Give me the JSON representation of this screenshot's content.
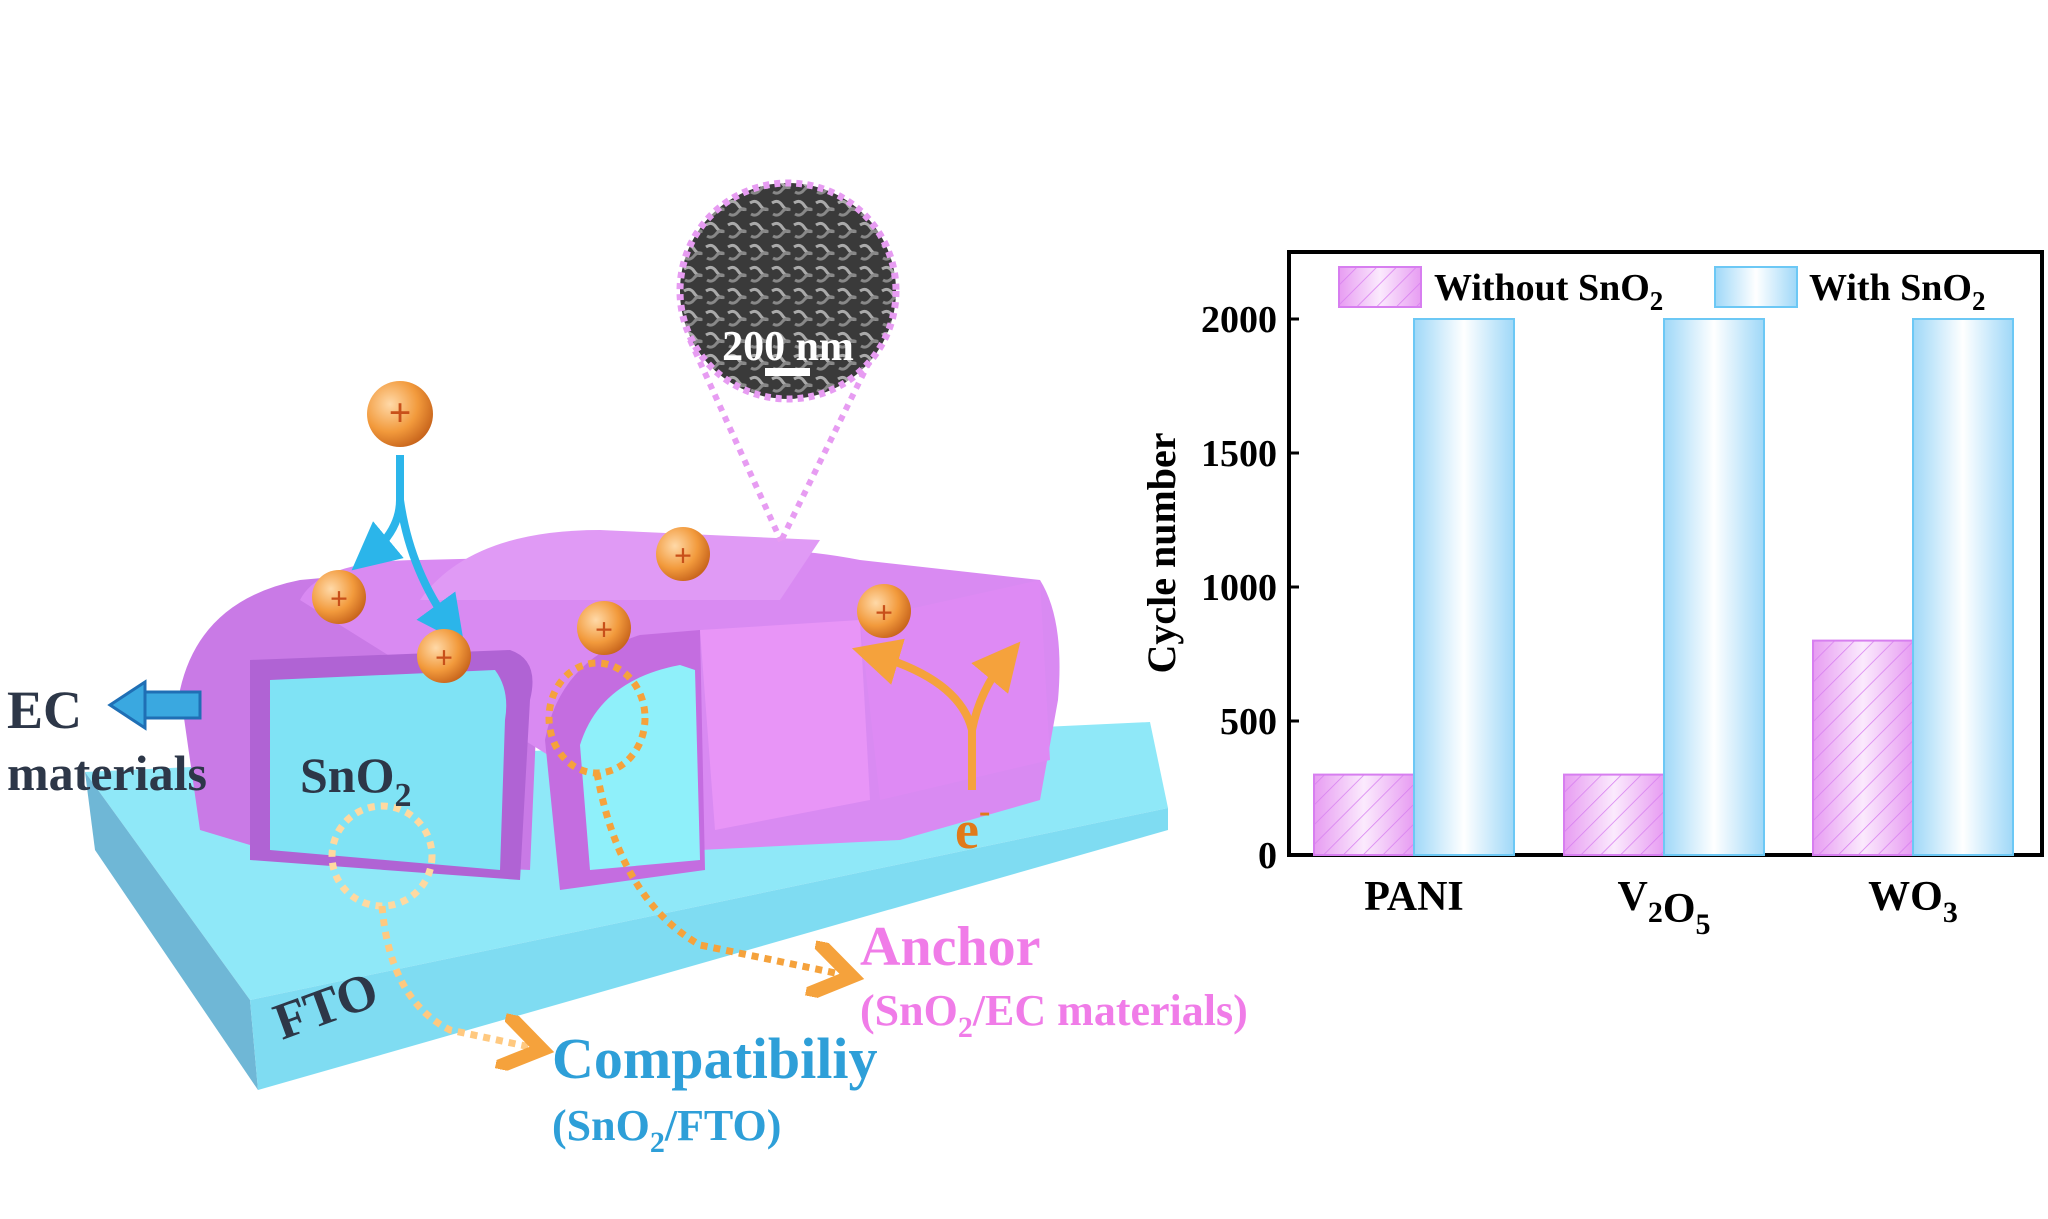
{
  "diagram": {
    "ec_label": {
      "line1": "EC",
      "line2": "materials"
    },
    "sno2_label": {
      "main": "SnO",
      "sub": "2"
    },
    "fto_label": "FTO",
    "electron_label": {
      "main": "e",
      "sup": "-"
    },
    "ion_symbol": "+",
    "sem_scale": "200 nm",
    "anchor": {
      "title": "Anchor",
      "sub_a": "(SnO",
      "sub_num": "2",
      "sub_b": "/EC materials)"
    },
    "compat": {
      "title": "Compatibiliy",
      "sub_a": "(SnO",
      "sub_num": "2",
      "sub_b": "/FTO)"
    },
    "colors": {
      "ec_material": "#d77ef0",
      "sno2": "#7fe3f5",
      "fto": "#8fe8f8",
      "ion": "#f29a3c",
      "arrow_blue": "#2bb5ea",
      "anchor_text": "#f07ce8",
      "compat_text": "#2e9fd8",
      "dark_text": "#2d3748"
    }
  },
  "chart_data": {
    "type": "bar",
    "categories": [
      {
        "main": "PANI",
        "parts": [
          [
            "PANI",
            ""
          ]
        ]
      },
      {
        "main": "V2O5",
        "parts": [
          [
            "V",
            "2"
          ],
          [
            "O",
            "5"
          ]
        ]
      },
      {
        "main": "WO3",
        "parts": [
          [
            "WO",
            "3"
          ]
        ]
      }
    ],
    "series": [
      {
        "name": "Without SnO2",
        "label_main": "Without SnO",
        "label_sub": "2",
        "values": [
          300,
          300,
          800
        ],
        "color": "#e79cf2",
        "pattern": "diagonal-hatch"
      },
      {
        "name": "With SnO2",
        "label_main": "With SnO",
        "label_sub": "2",
        "values": [
          2000,
          2000,
          2000
        ],
        "color": "#9fd8f8",
        "pattern": "gradient"
      }
    ],
    "ylabel": "Cycle number",
    "ylim": [
      0,
      2250
    ],
    "yticks": [
      0,
      500,
      1000,
      1500,
      2000
    ],
    "grid": false,
    "legend": "top"
  }
}
